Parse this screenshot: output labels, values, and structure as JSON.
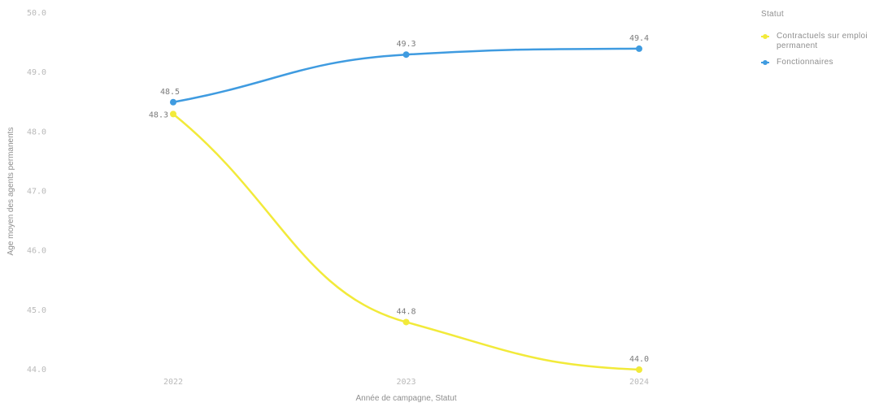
{
  "chart_data": {
    "type": "line",
    "title": "",
    "xlabel": "Année de campagne, Statut",
    "ylabel": "Age moyen des agents permanents",
    "x": [
      "2022",
      "2023",
      "2024"
    ],
    "ylim": [
      44.0,
      50.0
    ],
    "yticks": [
      "50.0",
      "49.0",
      "48.0",
      "47.0",
      "46.0",
      "45.0",
      "44.0"
    ],
    "grid": false,
    "legend_position": "right",
    "legend_title": "Statut",
    "series": [
      {
        "name": "Contractuels sur emploi permanent",
        "color": "#f2ea3a",
        "values": [
          48.3,
          44.8,
          44.0
        ],
        "labels": [
          "48.3",
          "44.8",
          "44.0"
        ]
      },
      {
        "name": "Fonctionnaires",
        "color": "#3f9be0",
        "values": [
          48.5,
          49.3,
          49.4
        ],
        "labels": [
          "48.5",
          "49.3",
          "49.4"
        ]
      }
    ]
  }
}
